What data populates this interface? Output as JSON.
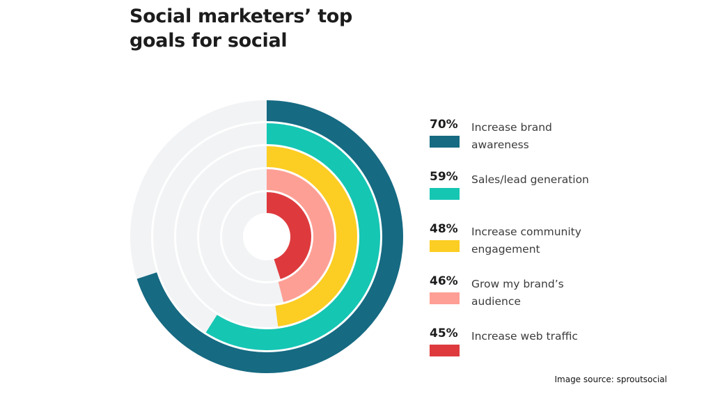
{
  "chart_data": {
    "type": "radial-bar",
    "title": "Social marketers’ top goals for social",
    "max": 100,
    "series": [
      {
        "name": "Increase brand awareness",
        "value": 70,
        "label": "70%",
        "color": "#166a82"
      },
      {
        "name": "Sales/lead generation",
        "value": 59,
        "label": "59%",
        "color": "#15c6b3"
      },
      {
        "name": "Increase community engagement",
        "value": 48,
        "label": "48%",
        "color": "#fccd23"
      },
      {
        "name": "Grow my brand’s audience",
        "value": 46,
        "label": "46%",
        "color": "#fe9f95"
      },
      {
        "name": "Increase web traffic",
        "value": 45,
        "label": "45%",
        "color": "#de3a3e"
      }
    ],
    "track_color": "#f1f3f5"
  },
  "source": "Image source: sproutsocial"
}
